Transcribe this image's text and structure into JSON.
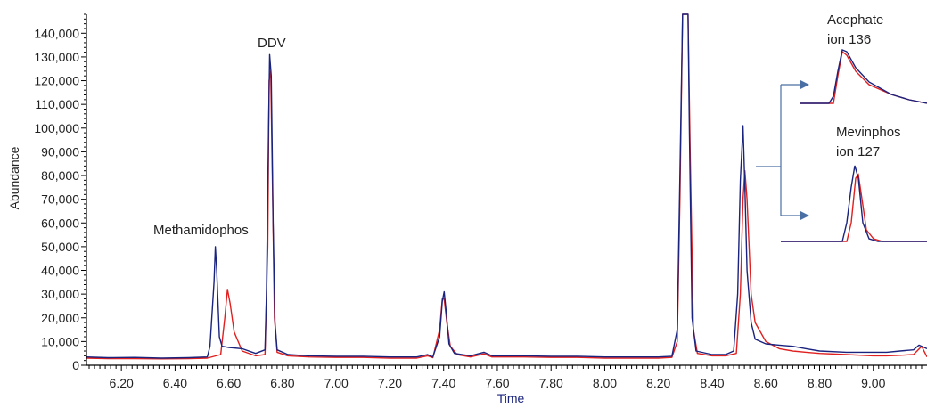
{
  "chart_data": {
    "type": "line",
    "xlabel": "Time",
    "ylabel": "Abundance",
    "xlim": [
      6.07,
      9.2
    ],
    "ylim": [
      0,
      148000
    ],
    "grid": false,
    "x_ticks": [
      "6.20",
      "6.40",
      "6.60",
      "6.80",
      "7.00",
      "7.20",
      "7.40",
      "7.60",
      "7.80",
      "8.00",
      "8.20",
      "8.40",
      "8.60",
      "8.80",
      "9.00"
    ],
    "y_ticks": [
      "0",
      "10,000",
      "20,000",
      "30,000",
      "40,000",
      "50,000",
      "60,000",
      "70,000",
      "80,000",
      "90,000",
      "100,000",
      "110,000",
      "120,000",
      "130,000",
      "140,000"
    ],
    "colors": {
      "blue": "#1a237e",
      "red": "#e02020",
      "axis": "#000000",
      "arrow": "#4a6fa5",
      "xlabel": "#1a237e"
    },
    "series": [
      {
        "color": "#1a237e",
        "points": [
          [
            6.07,
            3500
          ],
          [
            6.15,
            3200
          ],
          [
            6.25,
            3300
          ],
          [
            6.35,
            3000
          ],
          [
            6.45,
            3200
          ],
          [
            6.52,
            3500
          ],
          [
            6.53,
            8000
          ],
          [
            6.545,
            35000
          ],
          [
            6.55,
            50000
          ],
          [
            6.555,
            40000
          ],
          [
            6.565,
            12000
          ],
          [
            6.575,
            8000
          ],
          [
            6.6,
            7500
          ],
          [
            6.65,
            7000
          ],
          [
            6.7,
            5000
          ],
          [
            6.735,
            6500
          ],
          [
            6.74,
            30000
          ],
          [
            6.748,
            100000
          ],
          [
            6.752,
            131000
          ],
          [
            6.758,
            122000
          ],
          [
            6.765,
            60000
          ],
          [
            6.772,
            18000
          ],
          [
            6.78,
            6500
          ],
          [
            6.82,
            4500
          ],
          [
            6.9,
            4000
          ],
          [
            7.0,
            3800
          ],
          [
            7.1,
            3800
          ],
          [
            7.2,
            3500
          ],
          [
            7.3,
            3500
          ],
          [
            7.34,
            4500
          ],
          [
            7.36,
            3500
          ],
          [
            7.385,
            12000
          ],
          [
            7.395,
            27000
          ],
          [
            7.402,
            31000
          ],
          [
            7.41,
            22000
          ],
          [
            7.42,
            9000
          ],
          [
            7.44,
            5000
          ],
          [
            7.5,
            4000
          ],
          [
            7.55,
            5500
          ],
          [
            7.58,
            4000
          ],
          [
            7.7,
            4000
          ],
          [
            7.8,
            3800
          ],
          [
            7.9,
            3800
          ],
          [
            8.0,
            3500
          ],
          [
            8.1,
            3500
          ],
          [
            8.2,
            3500
          ],
          [
            8.25,
            3800
          ],
          [
            8.27,
            15000
          ],
          [
            8.28,
            80000
          ],
          [
            8.29,
            148000
          ],
          [
            8.31,
            148000
          ],
          [
            8.315,
            100000
          ],
          [
            8.325,
            20000
          ],
          [
            8.34,
            6000
          ],
          [
            8.4,
            4500
          ],
          [
            8.45,
            4500
          ],
          [
            8.48,
            6000
          ],
          [
            8.495,
            30000
          ],
          [
            8.505,
            78000
          ],
          [
            8.515,
            101000
          ],
          [
            8.522,
            75000
          ],
          [
            8.53,
            40000
          ],
          [
            8.545,
            18000
          ],
          [
            8.56,
            11000
          ],
          [
            8.6,
            9000
          ],
          [
            8.65,
            8500
          ],
          [
            8.7,
            8000
          ],
          [
            8.75,
            7000
          ],
          [
            8.8,
            6000
          ],
          [
            8.9,
            5500
          ],
          [
            9.0,
            5500
          ],
          [
            9.05,
            5500
          ],
          [
            9.1,
            6000
          ],
          [
            9.15,
            6500
          ],
          [
            9.17,
            8500
          ],
          [
            9.2,
            7000
          ]
        ]
      },
      {
        "color": "#e02020",
        "points": [
          [
            6.07,
            3000
          ],
          [
            6.15,
            2800
          ],
          [
            6.25,
            2800
          ],
          [
            6.35,
            2700
          ],
          [
            6.45,
            2800
          ],
          [
            6.52,
            3000
          ],
          [
            6.57,
            4500
          ],
          [
            6.585,
            20000
          ],
          [
            6.595,
            32000
          ],
          [
            6.605,
            26000
          ],
          [
            6.62,
            14000
          ],
          [
            6.65,
            6000
          ],
          [
            6.7,
            4000
          ],
          [
            6.735,
            4500
          ],
          [
            6.745,
            50000
          ],
          [
            6.75,
            120000
          ],
          [
            6.756,
            124000
          ],
          [
            6.762,
            80000
          ],
          [
            6.77,
            20000
          ],
          [
            6.78,
            5500
          ],
          [
            6.82,
            4000
          ],
          [
            6.9,
            3500
          ],
          [
            7.0,
            3300
          ],
          [
            7.1,
            3300
          ],
          [
            7.2,
            3000
          ],
          [
            7.3,
            3000
          ],
          [
            7.34,
            4000
          ],
          [
            7.36,
            3200
          ],
          [
            7.385,
            15000
          ],
          [
            7.395,
            28000
          ],
          [
            7.402,
            28000
          ],
          [
            7.412,
            18000
          ],
          [
            7.425,
            8000
          ],
          [
            7.45,
            4500
          ],
          [
            7.5,
            3500
          ],
          [
            7.55,
            4800
          ],
          [
            7.58,
            3500
          ],
          [
            7.7,
            3500
          ],
          [
            7.8,
            3300
          ],
          [
            7.9,
            3300
          ],
          [
            8.0,
            3000
          ],
          [
            8.1,
            3000
          ],
          [
            8.2,
            3000
          ],
          [
            8.25,
            3300
          ],
          [
            8.27,
            10000
          ],
          [
            8.28,
            70000
          ],
          [
            8.29,
            148000
          ],
          [
            8.31,
            148000
          ],
          [
            8.318,
            90000
          ],
          [
            8.33,
            15000
          ],
          [
            8.345,
            5000
          ],
          [
            8.4,
            4000
          ],
          [
            8.45,
            4000
          ],
          [
            8.49,
            5000
          ],
          [
            8.505,
            30000
          ],
          [
            8.515,
            70000
          ],
          [
            8.522,
            82000
          ],
          [
            8.53,
            70000
          ],
          [
            8.545,
            30000
          ],
          [
            8.56,
            18000
          ],
          [
            8.6,
            10000
          ],
          [
            8.65,
            7000
          ],
          [
            8.7,
            6000
          ],
          [
            8.75,
            5500
          ],
          [
            8.8,
            5000
          ],
          [
            8.9,
            4500
          ],
          [
            9.0,
            4000
          ],
          [
            9.05,
            4000
          ],
          [
            9.1,
            4200
          ],
          [
            9.15,
            4500
          ],
          [
            9.18,
            8000
          ],
          [
            9.2,
            3500
          ]
        ]
      }
    ],
    "annotations": {
      "methamidophos": "Methamidophos",
      "ddv": "DDV",
      "acephate_name": "Acephate",
      "acephate_ion": "ion 136",
      "mevinphos_name": "Mevinphos",
      "mevinphos_ion": "ion 127"
    }
  }
}
